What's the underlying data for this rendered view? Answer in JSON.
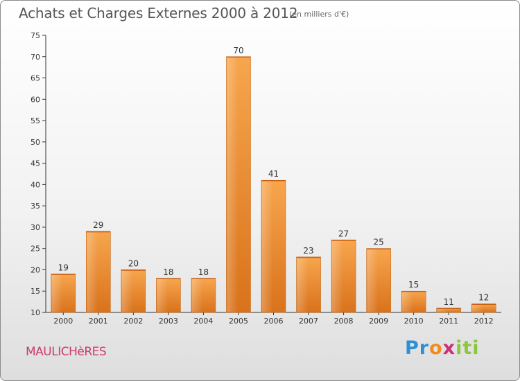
{
  "chart_data": {
    "type": "bar",
    "title": "Achats et Charges Externes 2000 à 2012",
    "subtitle": "(en milliers d'€)",
    "categories": [
      "2000",
      "2001",
      "2002",
      "2003",
      "2004",
      "2005",
      "2006",
      "2007",
      "2008",
      "2009",
      "2010",
      "2011",
      "2012"
    ],
    "values": [
      19,
      29,
      20,
      18,
      18,
      70,
      41,
      23,
      27,
      25,
      15,
      11,
      12
    ],
    "ylim": [
      10,
      75
    ],
    "yticks": [
      10,
      15,
      20,
      25,
      30,
      35,
      40,
      45,
      50,
      55,
      60,
      65,
      70,
      75
    ],
    "grid": false,
    "bar_color": "#f0902c",
    "xlabel": "",
    "ylabel": ""
  },
  "footer": {
    "commune": "MAULICHèRES",
    "logo_parts": [
      "Pr",
      "o",
      "x",
      "iti"
    ]
  },
  "colors": {
    "bar": "#f0902c",
    "bar_dark": "#d9741a",
    "commune_text": "#cc3b6e",
    "logo_blue": "#2f8fd6",
    "logo_orange": "#f28a1c",
    "logo_magenta": "#cc2f77",
    "logo_green": "#8cc63f"
  }
}
